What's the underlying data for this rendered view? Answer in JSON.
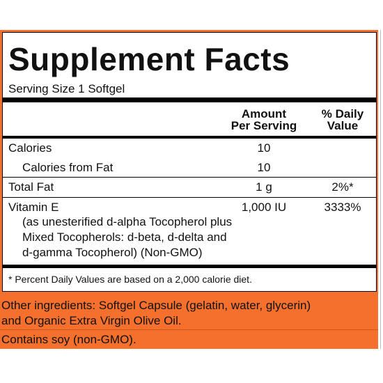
{
  "header": {
    "title": "Supplement Facts",
    "serving_size": "Serving Size 1 Softgel"
  },
  "table": {
    "columns": {
      "amount": [
        "Amount",
        "Per Serving"
      ],
      "daily_value": [
        "% Daily",
        "Value"
      ]
    },
    "rows": [
      {
        "name": "Calories",
        "amount": "10"
      },
      {
        "name": "Calories from Fat",
        "amount": "10"
      },
      {
        "name": "Total Fat",
        "amount": "1 g",
        "daily_value": "2%*"
      },
      {
        "name": "Vitamin E",
        "amount": "1,000 IU",
        "daily_value": "3333%",
        "description": [
          "(as unesterified d-alpha Tocopherol plus",
          "Mixed Tocopherols: d-beta, d-delta and",
          "d-gamma Tocopherol) (Non-GMO)"
        ]
      }
    ],
    "footnote": "* Percent Daily Values are based on a 2,000 calorie diet."
  },
  "ingredients": {
    "lines": [
      "Other ingredients: Softgel Capsule (gelatin, water, glycerin)",
      "and Organic Extra Virgin Olive Oil."
    ],
    "allergen": "Contains soy (non-GMO)."
  }
}
